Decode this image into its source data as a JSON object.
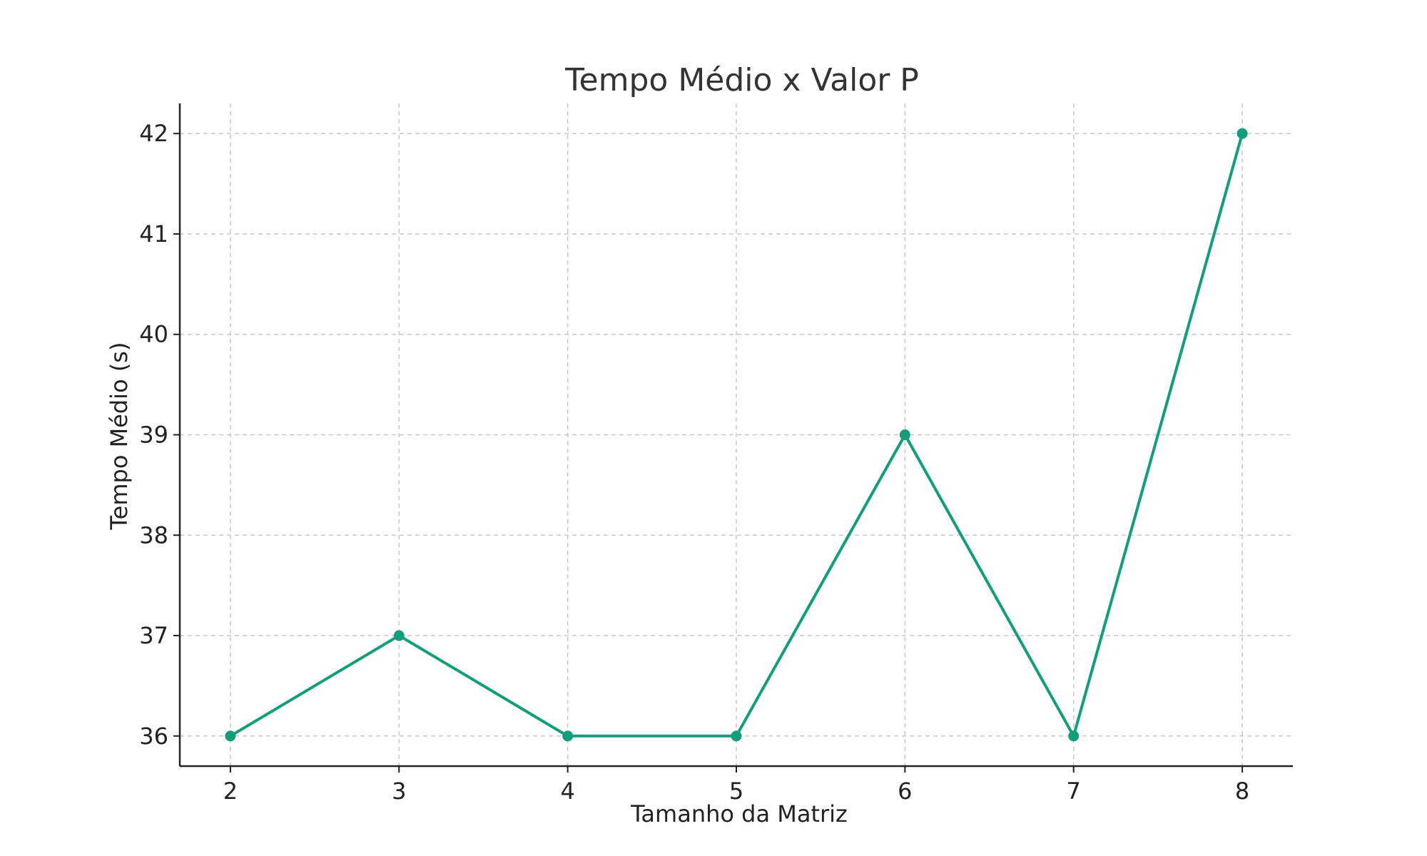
{
  "chart_data": {
    "type": "line",
    "title": "Tempo Médio x Valor P",
    "xlabel": "Tamanho da Matriz",
    "ylabel": "Tempo Médio (s)",
    "x": [
      2,
      3,
      4,
      5,
      6,
      7,
      8
    ],
    "series": [
      {
        "values": [
          36,
          37,
          36,
          36,
          39,
          36,
          42
        ]
      }
    ],
    "xlim": [
      1.7,
      8.3
    ],
    "ylim": [
      35.7,
      42.3
    ],
    "xticks": [
      2,
      3,
      4,
      5,
      6,
      7,
      8
    ],
    "yticks": [
      36,
      37,
      38,
      39,
      40,
      41,
      42
    ],
    "grid": true,
    "color": "#129e7a"
  }
}
